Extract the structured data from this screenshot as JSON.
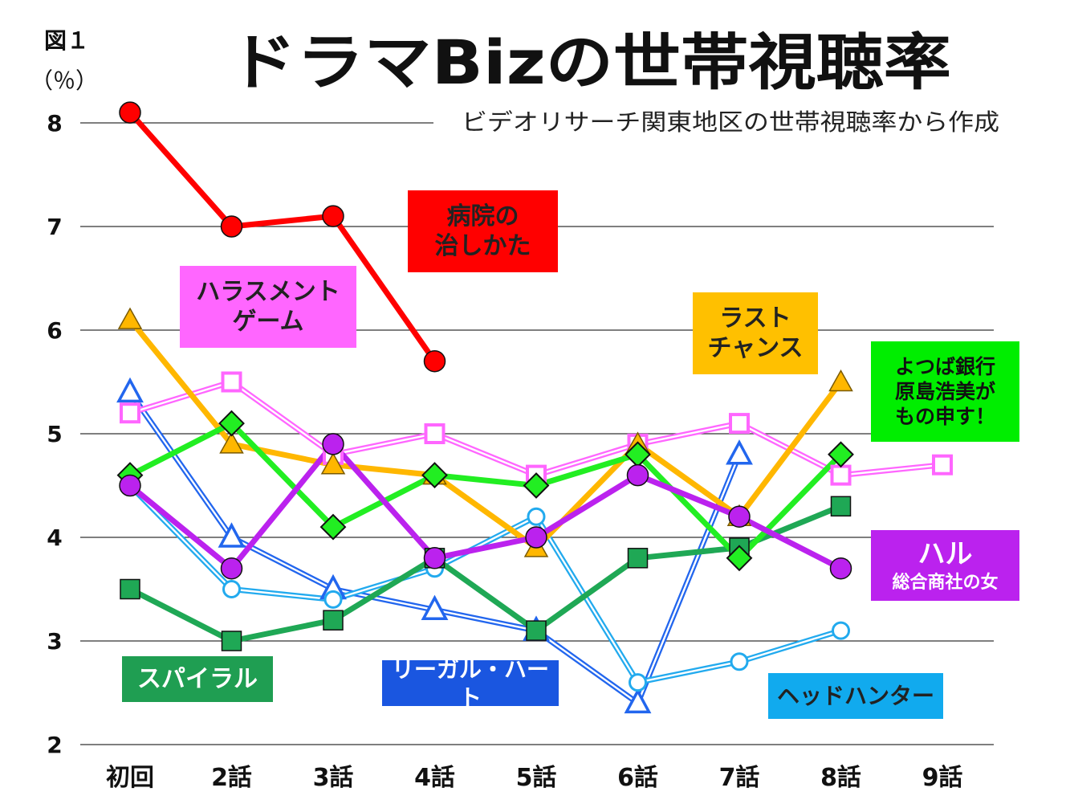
{
  "chart_data": {
    "type": "line",
    "figure_label": "図１",
    "unit_label": "（％）",
    "title": "ドラマBizの世帯視聴率",
    "subtitle": "ビデオリサーチ関東地区の世帯視聴率から作成",
    "categories": [
      "初回",
      "2話",
      "3話",
      "4話",
      "5話",
      "6話",
      "7話",
      "8話",
      "9話"
    ],
    "y_ticks": [
      "2",
      "3",
      "4",
      "5",
      "6",
      "7",
      "8"
    ],
    "ylim": [
      2,
      8
    ],
    "grid": true,
    "series": [
      {
        "name": "病院の\n治しかた",
        "color": "#ff0000",
        "label_bg": "#ff0000",
        "label_fg": "#222222",
        "marker": "circle",
        "style": "thick",
        "values": [
          8.1,
          7.0,
          7.1,
          5.7,
          null,
          null,
          null,
          null,
          null
        ]
      },
      {
        "name": "ハラスメント\nゲーム",
        "color": "#ff66ff",
        "label_bg": "#ff66ff",
        "label_fg": "#222222",
        "marker": "square-open",
        "style": "double",
        "values": [
          5.2,
          5.5,
          4.8,
          5.0,
          4.6,
          4.9,
          5.1,
          4.6,
          4.7
        ]
      },
      {
        "name": "ラスト\nチャンス",
        "color": "#ffb700",
        "label_bg": "#ffc000",
        "label_fg": "#222222",
        "marker": "triangle-filled",
        "style": "thick",
        "values": [
          6.1,
          4.9,
          4.7,
          4.6,
          3.9,
          4.9,
          4.2,
          5.5,
          null
        ]
      },
      {
        "name": "よつば銀行\n原島浩美が\nもの申す！",
        "color": "#22ee22",
        "label_bg": "#00ee00",
        "label_fg": "#111111",
        "marker": "diamond",
        "style": "thick",
        "values": [
          4.6,
          5.1,
          4.1,
          4.6,
          4.5,
          4.8,
          3.8,
          4.8,
          null
        ]
      },
      {
        "name": "ハル\n総合商社の女",
        "color": "#bb22ee",
        "label_bg": "#bb22ee",
        "label_fg": "#ffffff",
        "marker": "circle",
        "style": "thick",
        "values": [
          4.5,
          3.7,
          4.9,
          3.8,
          4.0,
          4.6,
          4.2,
          3.7,
          null
        ]
      },
      {
        "name": "スパイラル",
        "color": "#1fa855",
        "label_bg": "#1f9e52",
        "label_fg": "#ffffff",
        "marker": "square",
        "style": "thick",
        "values": [
          3.5,
          3.0,
          3.2,
          3.8,
          3.1,
          3.8,
          3.9,
          4.3,
          null
        ]
      },
      {
        "name": "リーガル・ハート",
        "color": "#2266ee",
        "label_bg": "#1a56e0",
        "label_fg": "#ffffff",
        "marker": "triangle-open",
        "style": "double",
        "values": [
          5.4,
          4.0,
          3.5,
          3.3,
          3.1,
          2.4,
          4.8,
          null,
          null
        ]
      },
      {
        "name": "ヘッドハンター",
        "color": "#22aaee",
        "label_bg": "#11aaee",
        "label_fg": "#222222",
        "marker": "circle-open",
        "style": "double",
        "values": [
          4.5,
          3.5,
          3.4,
          3.7,
          4.2,
          2.6,
          2.8,
          3.1,
          null
        ]
      }
    ]
  }
}
